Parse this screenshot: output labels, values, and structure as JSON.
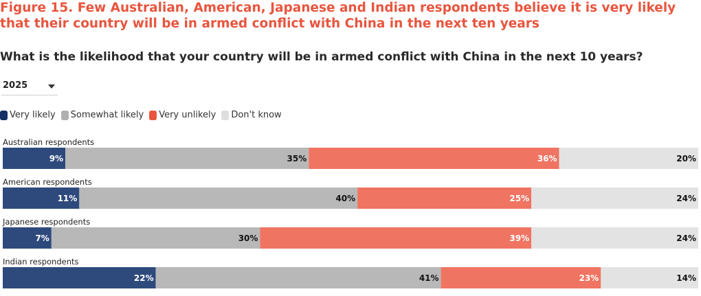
{
  "figure_title": "Figure 15. Few Australian, American, Japanese and Indian respondents believe it is very likely that their country will be in armed conflict with China in the next ten years",
  "year_selector": {
    "selected": "2025"
  },
  "chart_data": {
    "type": "bar",
    "orientation": "horizontal",
    "stacked": true,
    "title": "What is the likelihood that your country will be in armed conflict with China in the next 10 years?",
    "categories": [
      "Australian respondents",
      "American respondents",
      "Japanese respondents",
      "Indian respondents"
    ],
    "series": [
      {
        "name": "Very likely",
        "color": "#2e4a7d",
        "values": [
          9,
          11,
          7,
          22
        ]
      },
      {
        "name": "Somewhat likely",
        "color": "#b8b8b8",
        "values": [
          35,
          40,
          30,
          41
        ]
      },
      {
        "name": "Very unlikely",
        "color": "#f07462",
        "values": [
          36,
          25,
          39,
          23
        ]
      },
      {
        "name": "Don't know",
        "color": "#e3e3e3",
        "values": [
          20,
          24,
          24,
          14
        ]
      }
    ],
    "legend_colors": [
      "#132f63",
      "#b0b0b0",
      "#e8553e",
      "#dedede"
    ],
    "value_suffix": "%",
    "legend_position": "top-left"
  }
}
